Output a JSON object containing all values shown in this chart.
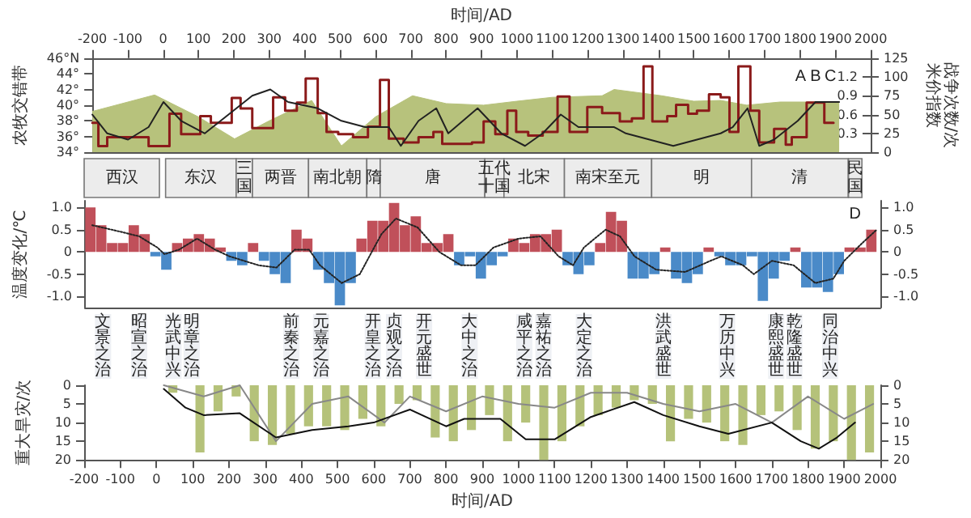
{
  "chart_data": [
    {
      "type": "line",
      "ylabel": "农牧交错带",
      "y2label": "战争次数/次",
      "y3label": "米价指数",
      "x2label": "时间/AD",
      "marker": "none",
      "tick_labels": "y",
      "xlim": [
        -200,
        2000
      ],
      "x2lim": [
        -200,
        2000
      ],
      "x2ticks": [
        -200,
        -100,
        0,
        100,
        200,
        300,
        400,
        500,
        600,
        700,
        800,
        900,
        1000,
        1100,
        1200,
        1300,
        1400,
        1500,
        1600,
        1700,
        1800,
        1900,
        2000
      ],
      "ylim": [
        34,
        46
      ],
      "yticks": [
        {
          "value": 34,
          "label": "34°"
        },
        {
          "value": 36,
          "label": "36°"
        },
        {
          "value": 38,
          "label": "38°"
        },
        {
          "value": 40,
          "label": "40°"
        },
        {
          "value": 42,
          "label": "42°"
        },
        {
          "value": 44,
          "label": "44°"
        },
        {
          "value": 46,
          "label": "46°N"
        }
      ],
      "y2lim": [
        0,
        125
      ],
      "y2ticks": [
        0,
        25,
        50,
        75,
        100,
        125
      ],
      "y3lim": [
        0,
        1.5
      ],
      "y3ticks": [
        0.3,
        0.6,
        0.9,
        1.2
      ],
      "series": [
        {
          "type": "area",
          "color": "#b7c27c",
          "x": [
            -200,
            -24,
            100,
            202,
            300,
            420,
            504,
            600,
            705,
            800,
            906,
            1000,
            1100,
            1241,
            1275,
            1409,
            1500,
            1576,
            1650,
            1744,
            1911
          ],
          "values": [
            39.2,
            41.3,
            38.5,
            35.7,
            38,
            40.6,
            34.8,
            38.5,
            41.2,
            40.2,
            40,
            40.5,
            41,
            41.2,
            42,
            41.2,
            40.5,
            40.6,
            40,
            40.4,
            40.4
          ]
        },
        {
          "type": "step",
          "axis": "y2",
          "color": "#8b1a1a",
          "x": [
            -200,
            -183,
            -158,
            -41,
            18,
            51,
            105,
            135,
            194,
            219,
            252,
            311,
            345,
            378,
            403,
            437,
            462,
            495,
            537,
            579,
            613,
            638,
            680,
            722,
            764,
            789,
            873,
            906,
            939,
            973,
            998,
            1032,
            1073,
            1115,
            1149,
            1199,
            1241,
            1291,
            1325,
            1358,
            1383,
            1425,
            1450,
            1484,
            1509,
            1543,
            1576,
            1601,
            1626,
            1660,
            1685,
            1727,
            1760,
            1777,
            1819,
            1869,
            1895
          ],
          "values": [
            39,
            8,
            20,
            8,
            51,
            24,
            48,
            39,
            72,
            58,
            32,
            73,
            55,
            66,
            98,
            52,
            27,
            24,
            20,
            34,
            96,
            18,
            13,
            20,
            27,
            11,
            13,
            41,
            24,
            55,
            27,
            22,
            27,
            74,
            27,
            60,
            52,
            41,
            45,
            114,
            41,
            48,
            63,
            51,
            55,
            77,
            73,
            27,
            114,
            55,
            13,
            31,
            10,
            20,
            66,
            39,
            39
          ]
        },
        {
          "axis": "y3",
          "color": "#222222",
          "x": [
            -200,
            -158,
            -99,
            -41,
            1,
            51,
            118,
            185,
            252,
            303,
            353,
            437,
            504,
            571,
            638,
            672,
            722,
            772,
            806,
            889,
            956,
            1023,
            1073,
            1124,
            1174,
            1275,
            1308,
            1375,
            1442,
            1509,
            1576,
            1610,
            1652,
            1685,
            1727,
            1794,
            1844,
            1878,
            1911
          ],
          "values": [
            0.6,
            0.3,
            0.2,
            0.4,
            0.8,
            0.5,
            0.3,
            0.6,
            0.9,
            1.0,
            0.8,
            0.7,
            0.5,
            0.4,
            0.4,
            0.1,
            0.5,
            0.7,
            0.3,
            0.7,
            0.3,
            0.1,
            0.3,
            0.6,
            0.4,
            0.4,
            0.3,
            0.2,
            0.1,
            0.2,
            0.3,
            0.4,
            0.7,
            0.1,
            0.2,
            0.5,
            0.8,
            0.8,
            0.8
          ]
        }
      ],
      "annotations": [
        "A",
        "B",
        "C"
      ]
    },
    {
      "type": "bar",
      "ylabel": "温度变化/℃",
      "marker": "none",
      "tick_labels": "y",
      "xlim": [
        -200,
        2000
      ],
      "ylim": [
        -1.25,
        1.15
      ],
      "yticks": [
        {
          "value": -1,
          "label": "-1.0"
        },
        -0.5,
        0,
        0.5,
        {
          "value": 1,
          "label": "1.0"
        }
      ],
      "y2lim": [
        -1.25,
        1.15
      ],
      "y2ticks": [
        {
          "value": -1,
          "label": "-1.0"
        },
        -0.5,
        0,
        0.5,
        {
          "value": 1,
          "label": "1.0"
        }
      ],
      "x": [
        -185,
        -155,
        -125,
        -95,
        -65,
        -35,
        -5,
        25,
        55,
        85,
        115,
        145,
        175,
        205,
        235,
        265,
        295,
        325,
        355,
        385,
        415,
        445,
        475,
        505,
        535,
        565,
        595,
        625,
        655,
        685,
        715,
        745,
        775,
        805,
        835,
        865,
        895,
        925,
        955,
        985,
        1015,
        1045,
        1075,
        1105,
        1135,
        1165,
        1195,
        1225,
        1255,
        1285,
        1315,
        1345,
        1375,
        1405,
        1435,
        1465,
        1495,
        1525,
        1555,
        1585,
        1615,
        1645,
        1675,
        1705,
        1735,
        1765,
        1795,
        1825,
        1855,
        1885,
        1915,
        1945,
        1975
      ],
      "series": [
        {
          "color": "#c0505a",
          "values": [
            1.0,
            0.6,
            0.2,
            0.2,
            0.6,
            0.4,
            null,
            null,
            0.2,
            0.3,
            0.4,
            0.3,
            0.1,
            null,
            null,
            0.2,
            null,
            null,
            null,
            0.5,
            0.3,
            null,
            null,
            null,
            null,
            0.3,
            0.7,
            0.7,
            1.1,
            0.6,
            0.8,
            0.2,
            0.2,
            0.4,
            null,
            null,
            null,
            null,
            null,
            0.3,
            0.2,
            0.4,
            0.4,
            0.5,
            null,
            null,
            null,
            0.2,
            0.9,
            0.7,
            null,
            null,
            null,
            0.1,
            null,
            null,
            null,
            0.1,
            null,
            null,
            null,
            null,
            null,
            null,
            null,
            0.1,
            null,
            null,
            null,
            null,
            0.1,
            0.1,
            0.5
          ]
        },
        {
          "color": "#4a8ac8",
          "values": [
            null,
            null,
            null,
            null,
            null,
            null,
            -0.1,
            -0.4,
            null,
            null,
            null,
            null,
            null,
            -0.2,
            -0.3,
            null,
            -0.2,
            -0.5,
            -0.7,
            null,
            null,
            -0.4,
            -0.7,
            -1.2,
            -0.7,
            null,
            null,
            null,
            null,
            null,
            null,
            null,
            null,
            null,
            -0.3,
            -0.1,
            -0.6,
            -0.3,
            -0.1,
            null,
            null,
            null,
            null,
            null,
            -0.3,
            -0.5,
            -0.3,
            null,
            null,
            null,
            -0.6,
            -0.6,
            -0.5,
            null,
            -0.6,
            -0.7,
            -0.5,
            null,
            -0.1,
            -0.3,
            -0.3,
            -0.1,
            -1.1,
            -0.6,
            -0.2,
            null,
            -0.8,
            -0.8,
            -0.9,
            -0.5,
            null,
            null,
            null
          ]
        },
        {
          "type": "line",
          "color": "#222222",
          "line_style": "dotted",
          "x": [
            -180,
            -100,
            -50,
            0,
            20,
            60,
            110,
            160,
            200,
            280,
            330,
            380,
            420,
            450,
            510,
            560,
            620,
            660,
            720,
            780,
            840,
            880,
            930,
            1000,
            1060,
            1110,
            1150,
            1180,
            1240,
            1280,
            1320,
            1380,
            1460,
            1530,
            1560,
            1620,
            1650,
            1700,
            1760,
            1820,
            1870,
            1900,
            1950,
            1990
          ],
          "values": [
            0.6,
            0.45,
            0.35,
            0.1,
            -0.05,
            0.05,
            0.3,
            0.05,
            -0.1,
            -0.3,
            -0.35,
            0.05,
            0.05,
            -0.3,
            -0.7,
            -0.5,
            0.4,
            0.75,
            0.55,
            0,
            -0.3,
            -0.3,
            0.1,
            0.3,
            0.35,
            -0.1,
            -0.3,
            0.1,
            0.5,
            0.35,
            -0.1,
            -0.4,
            -0.45,
            -0.2,
            -0.1,
            -0.3,
            -0.5,
            -0.2,
            -0.3,
            -0.7,
            -0.6,
            -0.2,
            0.2,
            0.5
          ]
        }
      ],
      "annotations": [
        "D",
        "文景之治",
        "昭宣之治",
        "光武中兴",
        "明章之治",
        "前秦之治",
        "元嘉之治",
        "开皇之治",
        "贞观之治",
        "开元盛世",
        "大中之治",
        "咸平之治",
        "嘉祐之治",
        "大定之治",
        "洪武盛世",
        "万历中兴",
        "康熙盛世",
        "乾隆盛世",
        "同治中兴",
        "西汉",
        "东汉",
        "三国",
        "两晋",
        "南北朝",
        "隋",
        "唐",
        "五代十国",
        "北宋",
        "南宋至元",
        "明",
        "清",
        "民国"
      ]
    },
    {
      "type": "bar",
      "ylabel": "重大旱灾/次",
      "xlabel": "时间/AD",
      "marker": "none",
      "xlim": [
        -200,
        2000
      ],
      "xticks": [
        -200,
        -100,
        0,
        100,
        200,
        300,
        400,
        500,
        600,
        700,
        800,
        900,
        1000,
        1100,
        1200,
        1300,
        1400,
        1500,
        1600,
        1700,
        1800,
        1900,
        2000
      ],
      "ylim": [
        20,
        0
      ],
      "yticks": [
        0,
        5,
        10,
        15,
        20
      ],
      "y2lim": [
        20,
        0
      ],
      "y2ticks": [
        0,
        5,
        10,
        15,
        20
      ],
      "series": [
        {
          "color": "#b5c27a",
          "x": [
            45,
            120,
            170,
            220,
            270,
            320,
            370,
            420,
            470,
            520,
            570,
            620,
            670,
            720,
            770,
            820,
            870,
            920,
            970,
            1020,
            1070,
            1120,
            1170,
            1220,
            1270,
            1320,
            1370,
            1420,
            1470,
            1520,
            1570,
            1620,
            1670,
            1720,
            1770,
            1820,
            1870,
            1920,
            1970
          ],
          "values": [
            2,
            18,
            7,
            3,
            15,
            16,
            13,
            11,
            11,
            12,
            9,
            11,
            5,
            4,
            14,
            15,
            12,
            8,
            15,
            10,
            20,
            15,
            11,
            8,
            6,
            4,
            5,
            15,
            9,
            10,
            15,
            16,
            8,
            7,
            12,
            17,
            15,
            20,
            18
          ]
        },
        {
          "type": "line",
          "color": "#888888",
          "x": [
            20,
            130,
            230,
            330,
            430,
            530,
            630,
            700,
            800,
            900,
            1000,
            1100,
            1200,
            1300,
            1400,
            1500,
            1600,
            1700,
            1800,
            1900,
            1980
          ],
          "values": [
            0,
            3,
            0,
            15,
            5,
            3,
            10,
            3,
            7,
            3,
            5,
            6,
            2,
            2,
            5,
            7,
            5,
            10,
            3,
            9,
            5
          ]
        },
        {
          "type": "line",
          "color": "#111111",
          "x": [
            20,
            80,
            130,
            230,
            330,
            430,
            530,
            600,
            700,
            800,
            850,
            950,
            1020,
            1100,
            1200,
            1320,
            1400,
            1500,
            1580,
            1700,
            1780,
            1830,
            1880,
            1930
          ],
          "values": [
            1,
            6,
            8,
            7.5,
            14,
            12,
            11,
            10,
            6.5,
            11,
            9,
            9,
            14.5,
            14.5,
            8.5,
            4.5,
            8,
            11,
            13,
            10,
            15,
            17,
            14,
            10
          ]
        }
      ]
    }
  ]
}
